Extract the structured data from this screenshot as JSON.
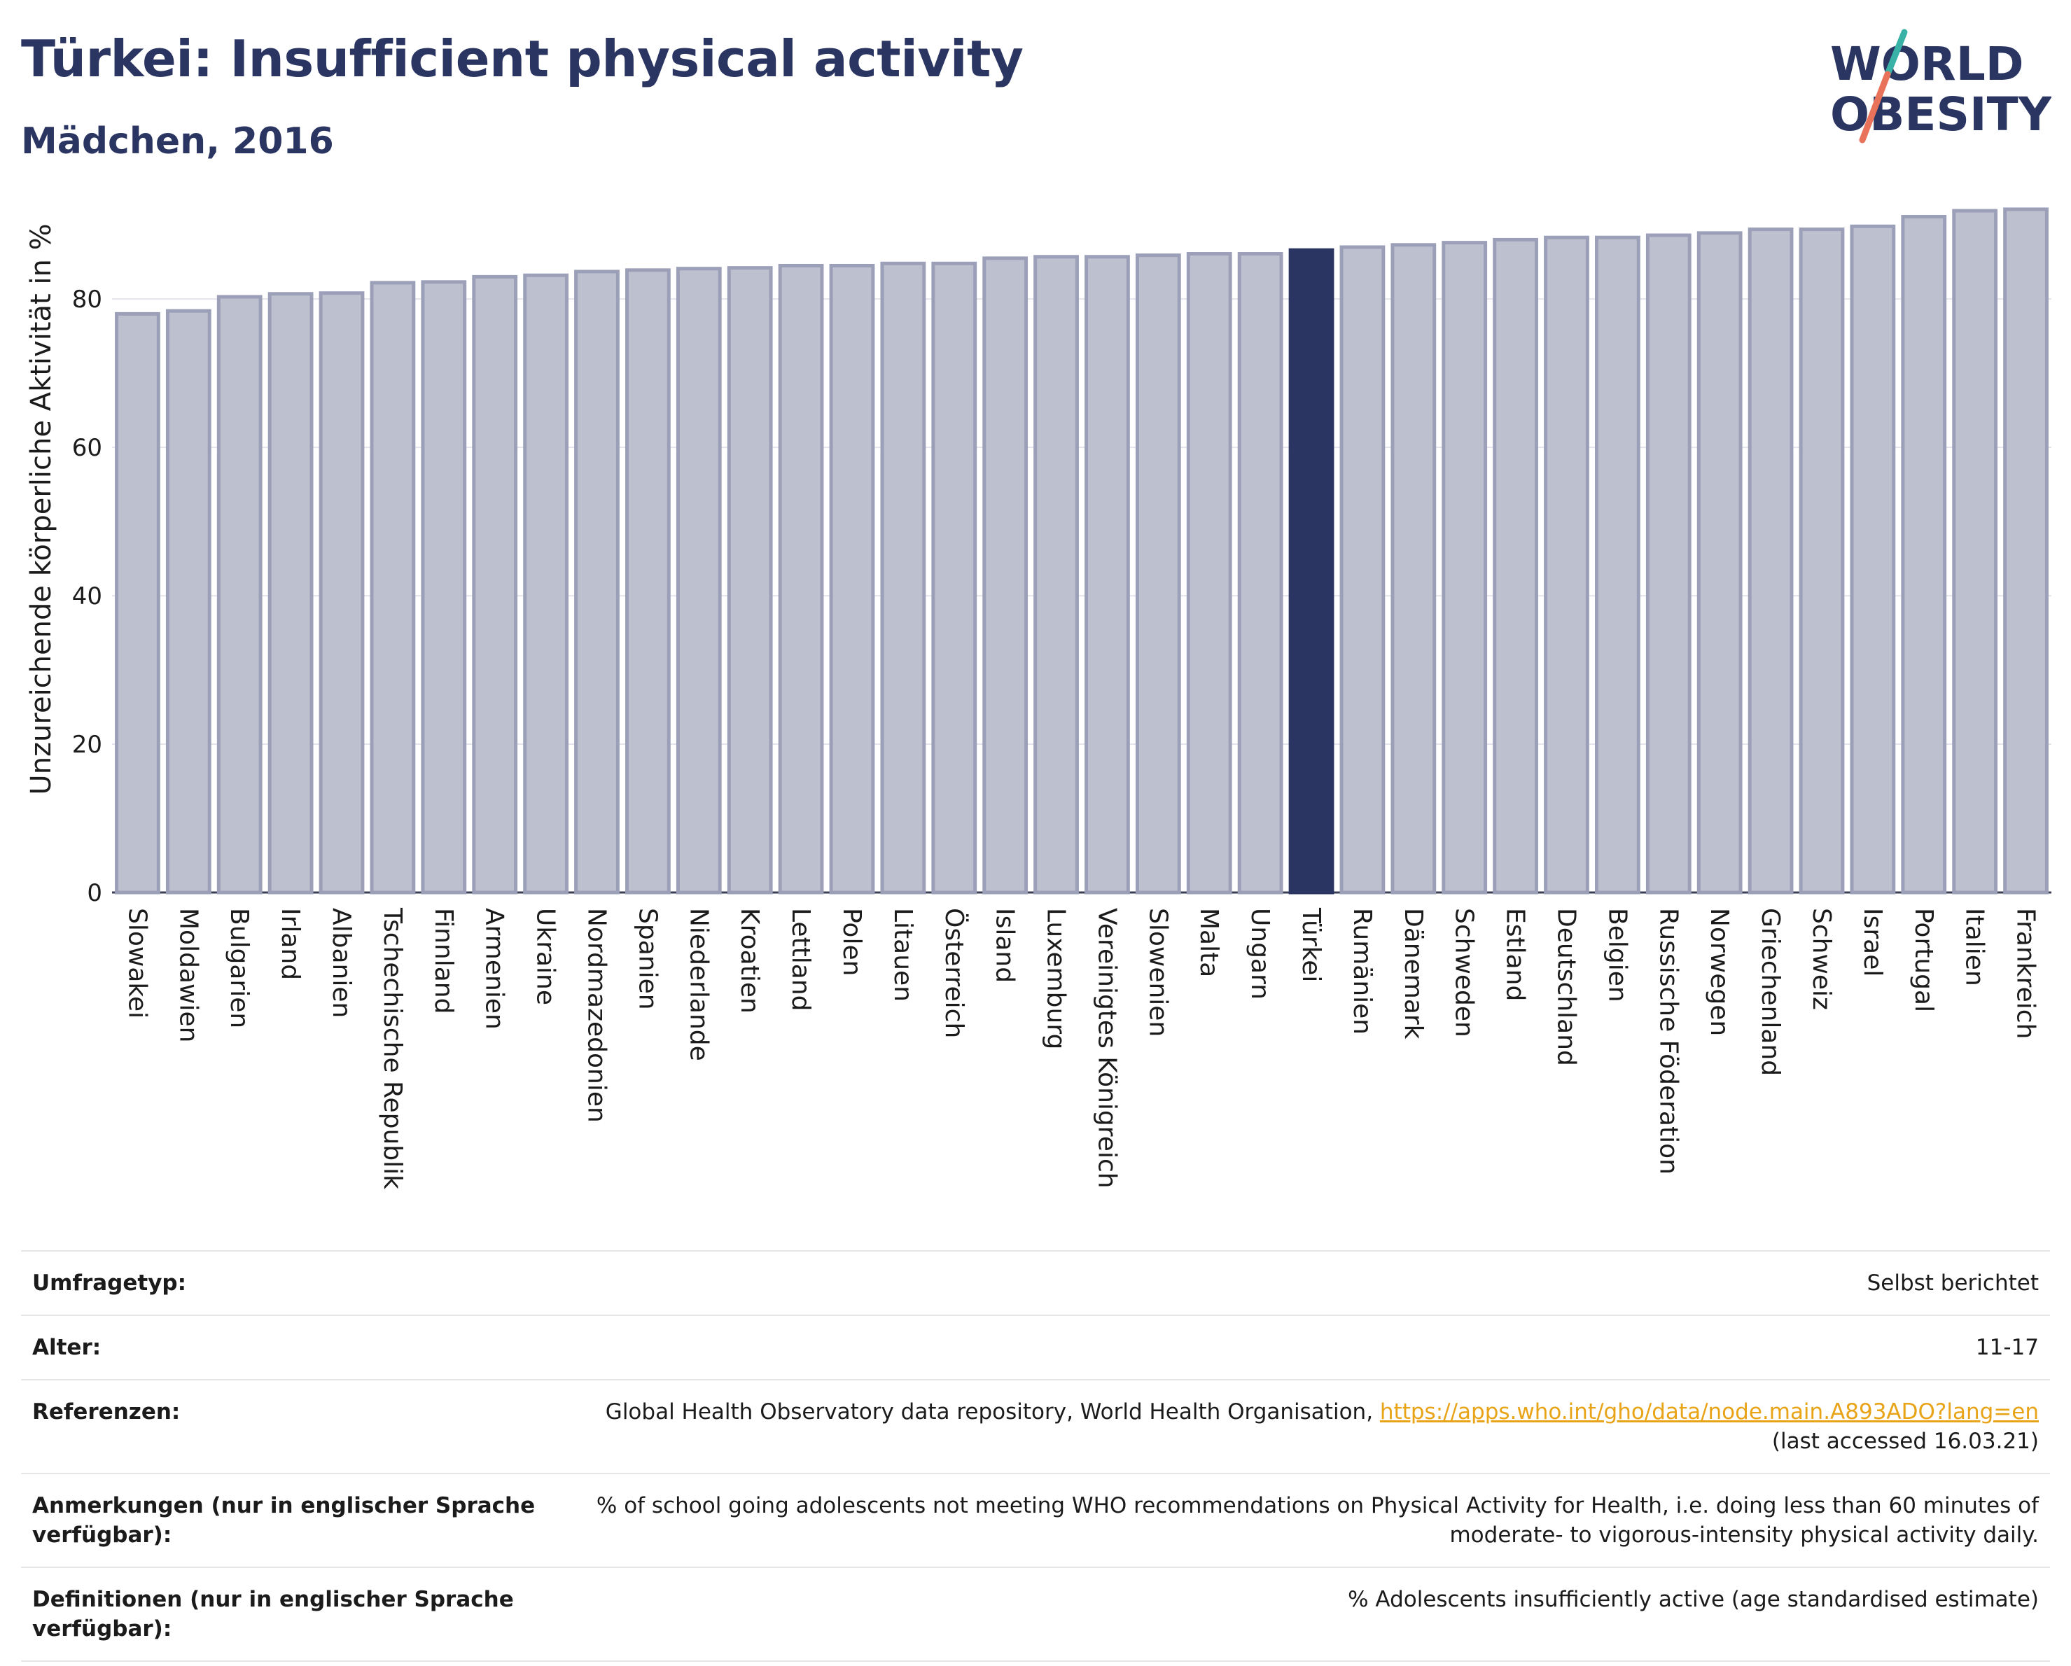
{
  "header": {
    "title": "Türkei: Insufficient physical activity",
    "subtitle": "Mädchen, 2016"
  },
  "logo": {
    "line1": "WORLD",
    "line2": "OBESITY",
    "text_color": "#2b3562",
    "slash_colors": [
      "#e8735a",
      "#38b2a6"
    ]
  },
  "colors": {
    "bar": "#bdc0cf",
    "bar_edge": "#9ba0b8",
    "highlight": "#2b3562",
    "axis_text": "#1b1b1b"
  },
  "chart_data": {
    "type": "bar",
    "ylabel": "Unzureichende körperliche Aktivität in %",
    "ylim": [
      0,
      92
    ],
    "yticks": [
      0,
      20,
      40,
      60,
      80
    ],
    "grid": true,
    "highlight": "Türkei",
    "categories": [
      "Slowakei",
      "Moldawien",
      "Bulgarien",
      "Irland",
      "Albanien",
      "Tschechische Republik",
      "Finnland",
      "Armenien",
      "Ukraine",
      "Nordmazedonien",
      "Spanien",
      "Niederlande",
      "Kroatien",
      "Lettland",
      "Polen",
      "Litauen",
      "Österreich",
      "Island",
      "Luxemburg",
      "Vereinigtes Königreich",
      "Slowenien",
      "Malta",
      "Ungarn",
      "Türkei",
      "Rumänien",
      "Dänemark",
      "Schweden",
      "Estland",
      "Deutschland",
      "Belgien",
      "Russische Föderation",
      "Norwegen",
      "Griechenland",
      "Schweiz",
      "Israel",
      "Portugal",
      "Italien",
      "Frankreich"
    ],
    "values": [
      78.0,
      78.4,
      80.3,
      80.7,
      80.8,
      82.2,
      82.3,
      83.0,
      83.2,
      83.7,
      83.9,
      84.1,
      84.2,
      84.5,
      84.5,
      84.8,
      84.8,
      85.5,
      85.7,
      85.7,
      85.9,
      86.1,
      86.1,
      86.6,
      87.0,
      87.3,
      87.6,
      88.0,
      88.3,
      88.3,
      88.6,
      88.9,
      89.4,
      89.4,
      89.8,
      91.1,
      91.9,
      92.1
    ]
  },
  "info": [
    {
      "label": "Umfragetyp:",
      "value": "Selbst berichtet"
    },
    {
      "label": "Alter:",
      "value": "11-17"
    },
    {
      "label": "Referenzen:",
      "value": "Global Health Observatory data repository, World Health Organisation, ",
      "link": "https://apps.who.int/gho/data/node.main.A893ADO?lang=en",
      "after": "(last accessed 16.03.21)"
    },
    {
      "label": "Anmerkungen (nur in englischer Sprache verfügbar):",
      "value": "% of school going adolescents not meeting WHO recommendations on Physical Activity for Health, i.e. doing less than 60 minutes of moderate- to vigorous-intensity physical activity daily."
    },
    {
      "label": "Definitionen (nur in englischer Sprache verfügbar):",
      "value": "% Adolescents insufficiently active (age standardised estimate)"
    }
  ]
}
